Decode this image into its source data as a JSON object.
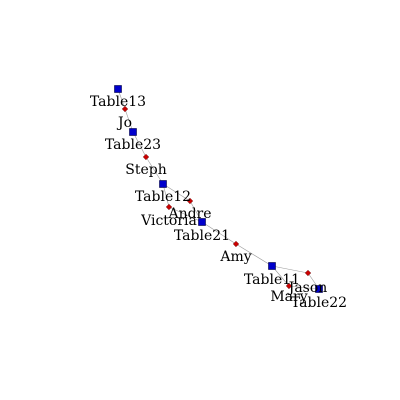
{
  "colors": {
    "table_fill": "#0000cc",
    "table_stroke": "#000044",
    "person_fill": "#cc0000",
    "person_stroke": "#660000",
    "edge": "#9a9a9a",
    "background": "#ffffff"
  },
  "node_types": {
    "table": "blue-square",
    "person": "red-diamond"
  },
  "nodes": [
    {
      "id": "Table13",
      "label": "Table13",
      "type": "table"
    },
    {
      "id": "Jo",
      "label": "Jo",
      "type": "person"
    },
    {
      "id": "Table23",
      "label": "Table23",
      "type": "table"
    },
    {
      "id": "Steph",
      "label": "Steph",
      "type": "person"
    },
    {
      "id": "Table12",
      "label": "Table12",
      "type": "table"
    },
    {
      "id": "Andre",
      "label": "Andre",
      "type": "person"
    },
    {
      "id": "Victoria",
      "label": "Victoria",
      "type": "person"
    },
    {
      "id": "Table21",
      "label": "Table21",
      "type": "table"
    },
    {
      "id": "Amy",
      "label": "Amy",
      "type": "person"
    },
    {
      "id": "Table11",
      "label": "Table11",
      "type": "table"
    },
    {
      "id": "Jason",
      "label": "Jason",
      "type": "person"
    },
    {
      "id": "Mary",
      "label": "Mary",
      "type": "person"
    },
    {
      "id": "Table22",
      "label": "Table22",
      "type": "table"
    }
  ],
  "edges": [
    [
      "Table13",
      "Jo"
    ],
    [
      "Jo",
      "Table23"
    ],
    [
      "Table23",
      "Steph"
    ],
    [
      "Steph",
      "Table12"
    ],
    [
      "Table12",
      "Andre"
    ],
    [
      "Table12",
      "Victoria"
    ],
    [
      "Andre",
      "Table21"
    ],
    [
      "Victoria",
      "Table21"
    ],
    [
      "Table21",
      "Amy"
    ],
    [
      "Amy",
      "Table11"
    ],
    [
      "Table11",
      "Jason"
    ],
    [
      "Table11",
      "Mary"
    ],
    [
      "Jason",
      "Table22"
    ],
    [
      "Mary",
      "Table22"
    ]
  ]
}
